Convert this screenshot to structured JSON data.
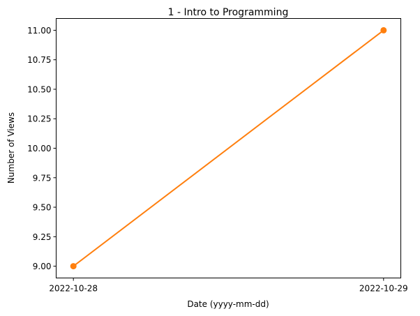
{
  "chart_data": {
    "type": "line",
    "title": "1 - Intro to Programming",
    "xlabel": "Date (yyyy-mm-dd)",
    "ylabel": "Number of Views",
    "x": [
      "2022-10-28",
      "2022-10-29"
    ],
    "series": [
      {
        "values": [
          9,
          11
        ],
        "color": "#ff7f0e",
        "marker": "circle"
      }
    ],
    "ylim": [
      8.9,
      11.1
    ],
    "yticks": [
      9.0,
      9.25,
      9.5,
      9.75,
      10.0,
      10.25,
      10.5,
      10.75,
      11.0
    ],
    "ytick_labels": [
      "9.00",
      "9.25",
      "9.50",
      "9.75",
      "10.00",
      "10.25",
      "10.50",
      "10.75",
      "11.00"
    ],
    "grid": false,
    "legend": "none"
  }
}
